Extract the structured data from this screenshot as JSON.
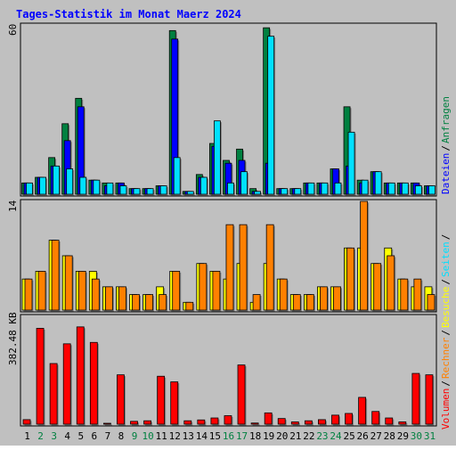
{
  "title": "Tages-Statistik im Monat Maerz 2024",
  "colors": {
    "panel_bg": "#c0c0c0",
    "title": "#0000ff",
    "weekday_label": "#000000",
    "weekend_label": "#008040",
    "anfragen": "#008040",
    "dateien": "#0000ff",
    "seiten": "#00e0ff",
    "besuche": "#ffff00",
    "rechner": "#ff8000",
    "volumen": "#ff0000"
  },
  "legend": {
    "anfragen": "Anfragen",
    "dateien": "Dateien",
    "seiten": "Seiten",
    "besuche": "Besuche",
    "rechner": "Rechner",
    "volumen": "Volumen",
    "sep": "/"
  },
  "chart_data": {
    "type": "bar",
    "title": "Tages-Statistik im Monat Maerz 2024",
    "categories": [
      "1",
      "2",
      "3",
      "4",
      "5",
      "6",
      "7",
      "8",
      "9",
      "10",
      "11",
      "12",
      "13",
      "14",
      "15",
      "16",
      "17",
      "18",
      "19",
      "20",
      "21",
      "22",
      "23",
      "24",
      "25",
      "26",
      "27",
      "28",
      "29",
      "30",
      "31"
    ],
    "weekend_days": [
      "2",
      "3",
      "9",
      "10",
      "16",
      "17",
      "23",
      "24",
      "30",
      "31"
    ],
    "panels": [
      {
        "name": "top",
        "ymax_label": "60",
        "ylim": [
          0,
          60
        ],
        "series": [
          {
            "name": "Anfragen",
            "key": "anfragen",
            "values": [
              4,
              6,
              13,
              25,
              34,
              5,
              4,
              4,
              2,
              2,
              3,
              58,
              1,
              7,
              18,
              12,
              16,
              2,
              59,
              2,
              2,
              4,
              4,
              9,
              31,
              5,
              8,
              4,
              4,
              4,
              3
            ]
          },
          {
            "name": "Dateien",
            "key": "dateien",
            "values": [
              4,
              6,
              10,
              19,
              31,
              5,
              3,
              4,
              2,
              2,
              3,
              55,
              1,
              6,
              17,
              11,
              12,
              1,
              11,
              2,
              2,
              4,
              4,
              9,
              10,
              4,
              8,
              4,
              4,
              4,
              3
            ]
          },
          {
            "name": "Seiten",
            "key": "seiten",
            "values": [
              4,
              6,
              10,
              9,
              6,
              5,
              4,
              3,
              2,
              2,
              3,
              13,
              1,
              6,
              26,
              4,
              8,
              1,
              56,
              2,
              2,
              4,
              4,
              4,
              22,
              5,
              8,
              4,
              4,
              3,
              3
            ]
          }
        ]
      },
      {
        "name": "middle",
        "ymax_label": "14",
        "ylim": [
          0,
          14
        ],
        "series": [
          {
            "name": "Besuche",
            "key": "besuche",
            "values": [
              4,
              5,
              9,
              7,
              5,
              5,
              3,
              3,
              2,
              2,
              3,
              5,
              1,
              6,
              5,
              4,
              6,
              1,
              6,
              4,
              2,
              2,
              3,
              3,
              8,
              8,
              6,
              8,
              4,
              3,
              3
            ]
          },
          {
            "name": "Rechner",
            "key": "rechner",
            "values": [
              4,
              5,
              9,
              7,
              5,
              4,
              3,
              3,
              2,
              2,
              2,
              5,
              1,
              6,
              5,
              11,
              11,
              2,
              11,
              4,
              2,
              2,
              3,
              3,
              8,
              14,
              6,
              7,
              4,
              4,
              2
            ]
          }
        ]
      },
      {
        "name": "bottom",
        "ymax_label": "382.48 KB",
        "ylim": [
          0,
          382.48
        ],
        "series": [
          {
            "name": "Volumen",
            "key": "volumen",
            "values": [
              16,
              340,
              215,
              285,
              345,
              290,
              3,
              175,
              10,
              12,
              170,
              150,
              12,
              15,
              22,
              30,
              210,
              4,
              40,
              20,
              8,
              12,
              16,
              32,
              38,
              95,
              45,
              22,
              8,
              180,
              175
            ]
          }
        ]
      }
    ]
  }
}
